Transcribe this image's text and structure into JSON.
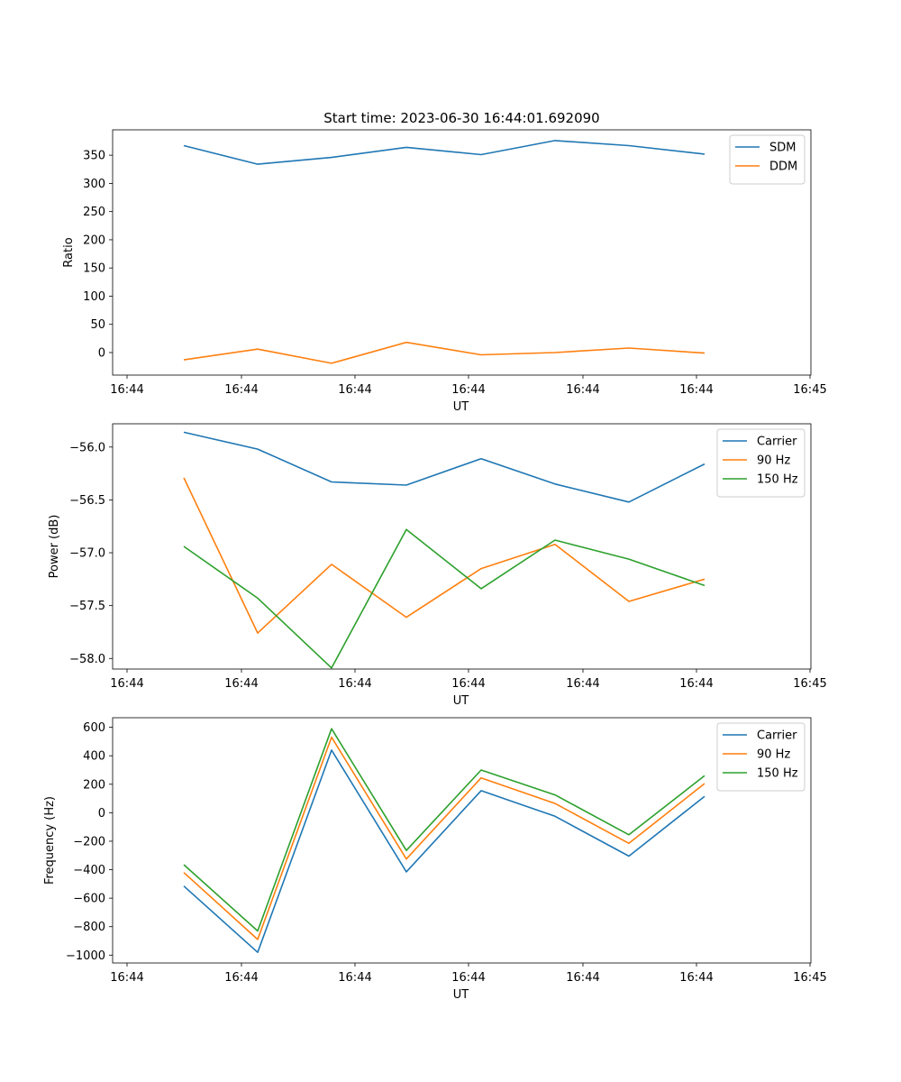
{
  "chart_data": [
    {
      "type": "line",
      "title": "Start time: 2023-06-30 16:44:01.692090",
      "xlabel": "UT",
      "ylabel": "Ratio",
      "x_tick_labels": [
        "16:44",
        "16:44",
        "16:44",
        "16:44",
        "16:44",
        "16:44",
        "16:44",
        "16:45"
      ],
      "y_ticks": [
        0,
        50,
        100,
        150,
        200,
        250,
        300,
        350
      ],
      "ylim": [
        -40,
        395
      ],
      "legend_position": "upper right",
      "series": [
        {
          "name": "SDM",
          "color": "#1f77b4",
          "values": [
            367,
            334,
            346,
            364,
            351,
            376,
            367,
            352
          ]
        },
        {
          "name": "DDM",
          "color": "#ff7f0e",
          "values": [
            -13,
            6,
            -19,
            18,
            -4,
            0,
            8,
            -1
          ]
        }
      ]
    },
    {
      "type": "line",
      "title": "",
      "xlabel": "UT",
      "ylabel": "Power (dB)",
      "x_tick_labels": [
        "16:44",
        "16:44",
        "16:44",
        "16:44",
        "16:44",
        "16:44",
        "16:44",
        "16:45"
      ],
      "y_ticks": [
        -58.0,
        -57.5,
        -57.0,
        -56.5,
        -56.0
      ],
      "y_tick_labels": [
        "−58.0",
        "−57.5",
        "−57.0",
        "−56.5",
        "−56.0"
      ],
      "ylim": [
        -58.1,
        -55.78
      ],
      "legend_position": "upper right",
      "series": [
        {
          "name": "Carrier",
          "color": "#1f77b4",
          "values": [
            -55.86,
            -56.02,
            -56.33,
            -56.36,
            -56.11,
            -56.35,
            -56.52,
            -56.16
          ]
        },
        {
          "name": "90 Hz",
          "color": "#ff7f0e",
          "values": [
            -56.29,
            -57.76,
            -57.11,
            -57.61,
            -57.15,
            -56.92,
            -57.46,
            -57.25
          ]
        },
        {
          "name": "150 Hz",
          "color": "#2ca02c",
          "values": [
            -56.94,
            -57.43,
            -58.09,
            -56.78,
            -57.34,
            -56.88,
            -57.06,
            -57.31
          ]
        }
      ]
    },
    {
      "type": "line",
      "title": "",
      "xlabel": "UT",
      "ylabel": "Frequency (Hz)",
      "x_tick_labels": [
        "16:44",
        "16:44",
        "16:44",
        "16:44",
        "16:44",
        "16:44",
        "16:44",
        "16:45"
      ],
      "y_ticks": [
        -1000,
        -800,
        -600,
        -400,
        -200,
        0,
        200,
        400,
        600
      ],
      "y_tick_labels": [
        "−1000",
        "−800",
        "−600",
        "−400",
        "−200",
        "0",
        "200",
        "400",
        "600"
      ],
      "ylim": [
        -1055,
        667
      ],
      "legend_position": "upper right",
      "series": [
        {
          "name": "Carrier",
          "color": "#1f77b4",
          "values": [
            -515,
            -980,
            440,
            -415,
            155,
            -25,
            -305,
            115
          ]
        },
        {
          "name": "90 Hz",
          "color": "#ff7f0e",
          "values": [
            -420,
            -890,
            530,
            -325,
            245,
            65,
            -215,
            205
          ]
        },
        {
          "name": "150 Hz",
          "color": "#2ca02c",
          "values": [
            -365,
            -830,
            590,
            -265,
            300,
            125,
            -155,
            260
          ]
        }
      ]
    }
  ]
}
